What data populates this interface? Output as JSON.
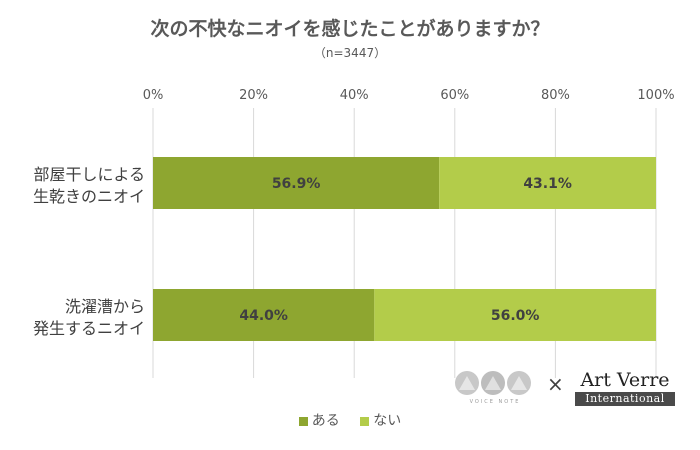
{
  "title": "次の不快なニオイを感じたことがありますか？",
  "subtitle": "（n=3447）",
  "chart_data": {
    "type": "bar",
    "orientation": "horizontal",
    "stacked": true,
    "categories": [
      [
        "部屋干しによる",
        "生乾きのニオイ"
      ],
      [
        "洗濯漕から",
        "発生するニオイ"
      ]
    ],
    "series": [
      {
        "name": "ある",
        "values": [
          56.9,
          44.0
        ],
        "labels": [
          "56.9%",
          "44.0%"
        ],
        "color": "#8ea630"
      },
      {
        "name": "ない",
        "values": [
          43.1,
          56.0
        ],
        "labels": [
          "43.1%",
          "56.0%"
        ],
        "color": "#b3cc4a"
      }
    ],
    "xlim": [
      0,
      100
    ],
    "xticks": [
      0,
      20,
      40,
      60,
      80,
      100
    ],
    "xtick_labels": [
      "0%",
      "20%",
      "40%",
      "60%",
      "80%",
      "100%"
    ],
    "grid": true,
    "legend_position": "bottom"
  },
  "logos": {
    "left_text": "VOICE NOTE",
    "times": "×",
    "right_main": "Art Verre",
    "right_sub": "International"
  }
}
